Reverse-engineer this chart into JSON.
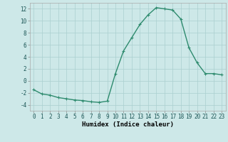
{
  "x": [
    0,
    1,
    2,
    3,
    4,
    5,
    6,
    7,
    8,
    9,
    10,
    11,
    12,
    13,
    14,
    15,
    16,
    17,
    18,
    19,
    20,
    21,
    22,
    23
  ],
  "y": [
    -1.5,
    -2.2,
    -2.4,
    -2.8,
    -3.0,
    -3.2,
    -3.3,
    -3.5,
    -3.6,
    -3.4,
    1.2,
    5.0,
    7.2,
    9.4,
    11.0,
    12.2,
    12.0,
    11.8,
    10.3,
    5.5,
    3.0,
    1.2,
    1.2,
    1.0
  ],
  "line_color": "#2e8b6e",
  "marker": "+",
  "marker_size": 3,
  "xlabel": "Humidex (Indice chaleur)",
  "xlim": [
    -0.5,
    23.5
  ],
  "ylim": [
    -5,
    13
  ],
  "yticks": [
    -4,
    -2,
    0,
    2,
    4,
    6,
    8,
    10,
    12
  ],
  "xticks": [
    0,
    1,
    2,
    3,
    4,
    5,
    6,
    7,
    8,
    9,
    10,
    11,
    12,
    13,
    14,
    15,
    16,
    17,
    18,
    19,
    20,
    21,
    22,
    23
  ],
  "xtick_labels": [
    "0",
    "1",
    "2",
    "3",
    "4",
    "5",
    "6",
    "7",
    "8",
    "9",
    "10",
    "11",
    "12",
    "13",
    "14",
    "15",
    "16",
    "17",
    "18",
    "19",
    "20",
    "21",
    "22",
    "23"
  ],
  "background_color": "#cde8e8",
  "grid_color": "#aacfcf",
  "line_width": 1.0,
  "tick_fontsize": 5.5,
  "xlabel_fontsize": 6.5
}
